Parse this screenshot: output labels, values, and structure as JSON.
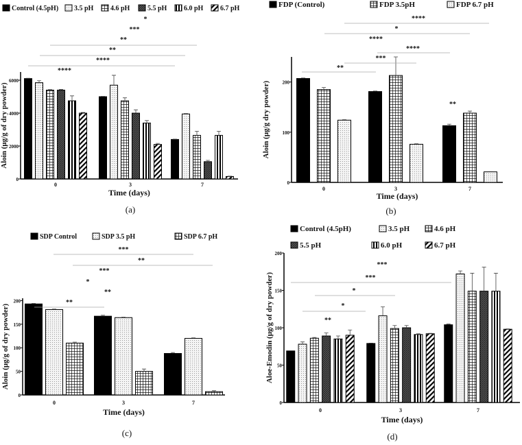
{
  "chart_data": [
    {
      "type": "bar",
      "panel_label": "(a)",
      "xlabel": "Time (days)",
      "ylabel": "Aloin (μg/g of dry powder)",
      "categories": [
        "0",
        "3",
        "7"
      ],
      "ylim": [
        0,
        6500
      ],
      "yticks": [
        "0",
        "2000",
        "4000",
        "6000"
      ],
      "legend": "top",
      "series": [
        {
          "name": "Control (4.5pH)",
          "values": [
            6100,
            5000,
            2400
          ],
          "errors": [
            20,
            20,
            20
          ]
        },
        {
          "name": "3.5 pH",
          "values": [
            5850,
            5700,
            3950
          ],
          "errors": [
            120,
            600,
            30
          ]
        },
        {
          "name": "4.6 pH",
          "values": [
            5400,
            4750,
            2650
          ],
          "errors": [
            30,
            180,
            250
          ]
        },
        {
          "name": "5.5 pH",
          "values": [
            5400,
            4000,
            1050
          ],
          "errors": [
            40,
            200,
            80
          ]
        },
        {
          "name": "6.0 pH",
          "values": [
            4750,
            3400,
            2650
          ],
          "errors": [
            300,
            150,
            250
          ]
        },
        {
          "name": "6.7 pH",
          "values": [
            4000,
            2100,
            150
          ],
          "errors": [
            40,
            60,
            20
          ]
        }
      ],
      "annotations": [
        "*",
        "***",
        "**",
        "**",
        "****",
        "****"
      ]
    },
    {
      "type": "bar",
      "panel_label": "(b)",
      "xlabel": "Time (days)",
      "ylabel": "Aloin (μg/g dry powder)",
      "categories": [
        "0",
        "3",
        "7"
      ],
      "ylim": [
        0,
        250
      ],
      "yticks": [
        "0",
        "100",
        "200"
      ],
      "legend": "top",
      "series": [
        {
          "name": "FDP  (Control)",
          "values": [
            207,
            181,
            113
          ],
          "errors": [
            1,
            1,
            3
          ]
        },
        {
          "name": "FDP 3.5pH",
          "values": [
            185,
            213,
            138
          ],
          "errors": [
            4,
            37,
            4
          ]
        },
        {
          "name": "FDP 6.7 pH",
          "values": [
            124,
            76,
            21
          ],
          "errors": [
            1,
            1,
            0.5
          ]
        }
      ],
      "annotations": [
        "****",
        "*",
        "****",
        "****",
        "***",
        "**",
        "**"
      ]
    },
    {
      "type": "bar",
      "panel_label": "(c)",
      "xlabel": "Time (days)",
      "ylabel": "Aloin (μg/g of dry powder)",
      "categories": [
        "0",
        "3",
        "7"
      ],
      "ylim": [
        0,
        205
      ],
      "yticks": [
        "0",
        "50",
        "100",
        "150",
        "200"
      ],
      "legend": "top",
      "series": [
        {
          "name": "SDP Control",
          "values": [
            193,
            167,
            88
          ],
          "errors": [
            1,
            2,
            2
          ]
        },
        {
          "name": "SDP 3.5 pH",
          "values": [
            181,
            164,
            120
          ],
          "errors": [
            1,
            1,
            1
          ]
        },
        {
          "name": "SDP 6.7 pH",
          "values": [
            110,
            50,
            7
          ],
          "errors": [
            2,
            5,
            2
          ]
        }
      ],
      "annotations": [
        "***",
        "**",
        "***",
        "*",
        "**",
        "**"
      ]
    },
    {
      "type": "bar",
      "panel_label": "(d)",
      "xlabel": "Time (days)",
      "ylabel": "Aloe-Emodin (μg/g of dry powder)",
      "categories": [
        "0",
        "3",
        "7"
      ],
      "ylim": [
        0,
        200
      ],
      "yticks": [
        "0",
        "50",
        "100",
        "150",
        "200"
      ],
      "legend": "top",
      "series": [
        {
          "name": "Control (4.5pH)",
          "values": [
            69,
            79,
            104
          ],
          "errors": [
            0,
            0.5,
            1
          ]
        },
        {
          "name": "3.5 pH",
          "values": [
            78,
            116,
            172
          ],
          "errors": [
            3,
            12,
            4
          ]
        },
        {
          "name": "4.6 pH",
          "values": [
            86,
            99,
            149
          ],
          "errors": [
            1,
            4,
            24
          ]
        },
        {
          "name": "5.5 pH",
          "values": [
            89,
            100,
            149
          ],
          "errors": [
            4,
            3,
            32
          ]
        },
        {
          "name": "6.0 pH",
          "values": [
            85,
            91,
            149
          ],
          "errors": [
            4,
            1,
            24
          ]
        },
        {
          "name": "6.7 pH",
          "values": [
            90,
            92,
            98
          ],
          "errors": [
            7,
            0.5,
            0.5
          ]
        }
      ],
      "annotations": [
        "***",
        "***",
        "*",
        "*",
        "**"
      ]
    }
  ]
}
